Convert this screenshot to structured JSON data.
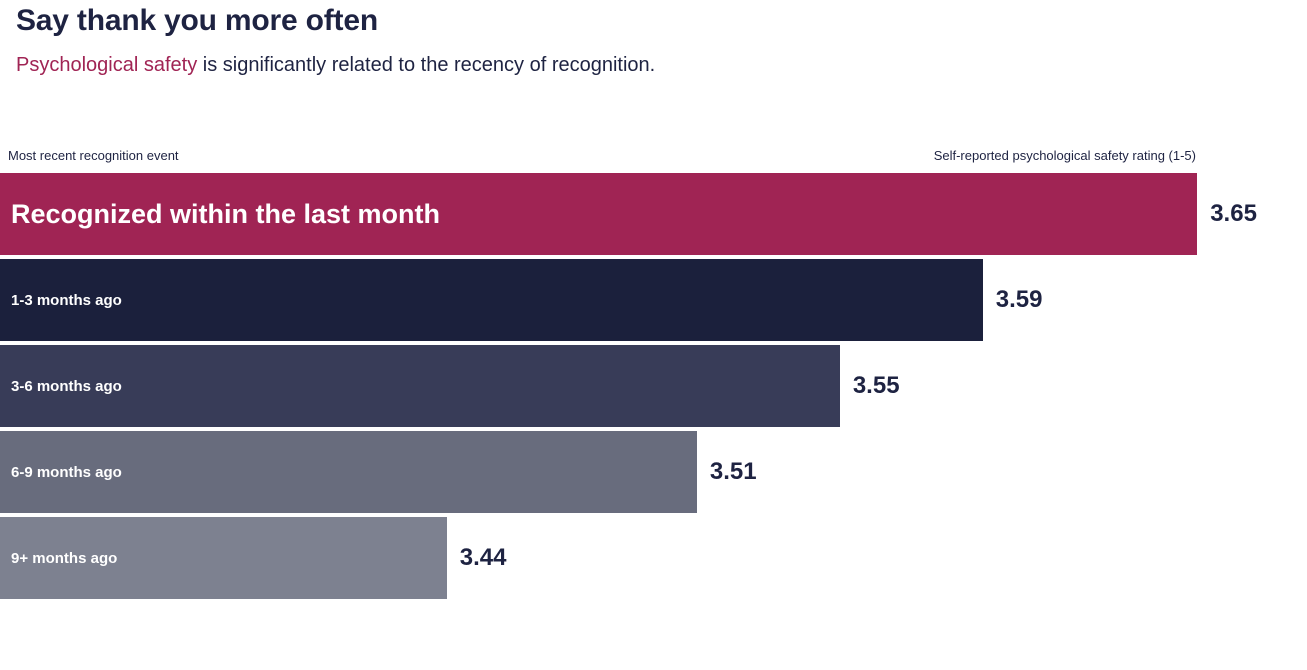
{
  "header": {
    "title": "Say thank you more often",
    "subtitle_highlight": "Psychological safety",
    "subtitle_rest": " is significantly related to the recency of recognition."
  },
  "axis": {
    "left_label": "Most recent recognition event",
    "right_label": "Self-reported psychological safety rating (1-5)"
  },
  "colors": {
    "title_text": "#1E2342",
    "subtitle_highlight": "#A02454",
    "value_text": "#1E2342",
    "bar_label_text": "#FFFFFF"
  },
  "chart_data": {
    "type": "bar",
    "orientation": "horizontal",
    "title": "Say thank you more often",
    "subtitle": "Psychological safety is significantly related to the recency of recognition.",
    "categories": [
      "Recognized within the last month",
      "1-3 months ago",
      "3-6 months ago",
      "6-9 months ago",
      "9+ months ago"
    ],
    "values": [
      3.65,
      3.59,
      3.55,
      3.51,
      3.44
    ],
    "value_labels": [
      "3.65",
      "3.59",
      "3.55",
      "3.51",
      "3.44"
    ],
    "bar_colors": [
      "#A02454",
      "#1B203C",
      "#383C58",
      "#686C7D",
      "#7D8190"
    ],
    "xlabel": "Self-reported psychological safety rating (1-5)",
    "ylabel": "Most recent recognition event",
    "xlim": [
      3.315,
      3.65
    ],
    "max_bar_width_pct": 91.6,
    "grid": false,
    "legend": false
  }
}
